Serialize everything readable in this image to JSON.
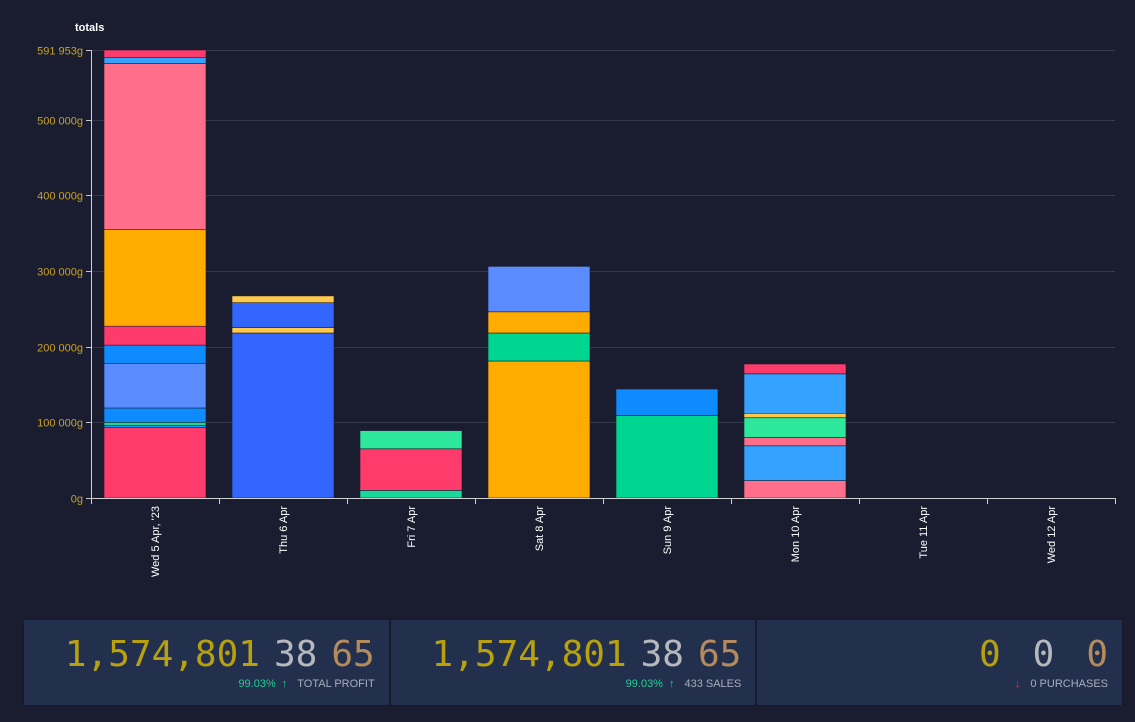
{
  "chart_data": {
    "type": "bar",
    "stacked": true,
    "title": "totals",
    "xlabel": "",
    "ylabel": "",
    "ylim": [
      0,
      591953
    ],
    "yticks": [
      0,
      100000,
      200000,
      300000,
      400000,
      500000,
      591953
    ],
    "ytick_labels": [
      "0g",
      "100 000g",
      "200 000g",
      "300 000g",
      "400 000g",
      "500 000g",
      "591 953g"
    ],
    "grid": true,
    "categories": [
      "Wed 5 Apr, '23",
      "Thu 6 Apr",
      "Fri 7 Apr",
      "Sat 8 Apr",
      "Sun 9 Apr",
      "Mon 10 Apr",
      "Tue 11 Apr",
      "Wed 12 Apr"
    ],
    "bars": [
      [
        {
          "value": 93000,
          "color": "#ff3b6b"
        },
        {
          "value": 3000,
          "color": "#1a9cff"
        },
        {
          "value": 4000,
          "color": "#16d99a"
        },
        {
          "value": 19000,
          "color": "#0d8bff"
        },
        {
          "value": 59000,
          "color": "#5a8bff"
        },
        {
          "value": 24000,
          "color": "#0d8bff"
        },
        {
          "value": 25000,
          "color": "#ff3b6b"
        },
        {
          "value": 128000,
          "color": "#ffab00"
        },
        {
          "value": 219000,
          "color": "#ff6e8a"
        },
        {
          "value": 8000,
          "color": "#36a2ff"
        },
        {
          "value": 10000,
          "color": "#ff3b6b"
        }
      ],
      [
        {
          "value": 218000,
          "color": "#3366ff"
        },
        {
          "value": 7000,
          "color": "#ffc94d"
        },
        {
          "value": 33000,
          "color": "#3366ff"
        },
        {
          "value": 9000,
          "color": "#ffc94d"
        }
      ],
      [
        {
          "value": 10000,
          "color": "#16d99a"
        },
        {
          "value": 55000,
          "color": "#ff3b6b"
        },
        {
          "value": 24000,
          "color": "#2de89b"
        }
      ],
      [
        {
          "value": 181000,
          "color": "#ffab00"
        },
        {
          "value": 37000,
          "color": "#00d68f"
        },
        {
          "value": 28000,
          "color": "#ffab00"
        },
        {
          "value": 60000,
          "color": "#5a8bff"
        }
      ],
      [
        {
          "value": 109000,
          "color": "#00d68f"
        },
        {
          "value": 35000,
          "color": "#0d8bff"
        }
      ],
      [
        {
          "value": 23000,
          "color": "#ff6e8a"
        },
        {
          "value": 46000,
          "color": "#36a2ff"
        },
        {
          "value": 11000,
          "color": "#ff6e8a"
        },
        {
          "value": 26000,
          "color": "#2de89b"
        },
        {
          "value": 6000,
          "color": "#ffc94d"
        },
        {
          "value": 52000,
          "color": "#36a2ff"
        },
        {
          "value": 13000,
          "color": "#ff3b6b"
        }
      ],
      [],
      []
    ]
  },
  "summary": {
    "profit": {
      "gold": "1,574,801",
      "silver": "38",
      "copper": "65",
      "change": "99.03%",
      "direction": "up",
      "label": "TOTAL PROFIT"
    },
    "sales": {
      "gold": "1,574,801",
      "silver": "38",
      "copper": "65",
      "change": "99.03%",
      "direction": "up",
      "label": "433 SALES"
    },
    "purchases": {
      "gold": "0",
      "silver": "0",
      "copper": "0",
      "direction": "down",
      "label": "0 PURCHASES"
    },
    "arrow_up": "↑",
    "arrow_down": "↓"
  },
  "colors": {
    "background": "#1a1d2f",
    "panel": "#23304d",
    "gold": "#b8a10d",
    "silver": "#b6b8bd",
    "copper": "#b58a5c",
    "up": "#1fd08f",
    "down": "#e2334c"
  }
}
